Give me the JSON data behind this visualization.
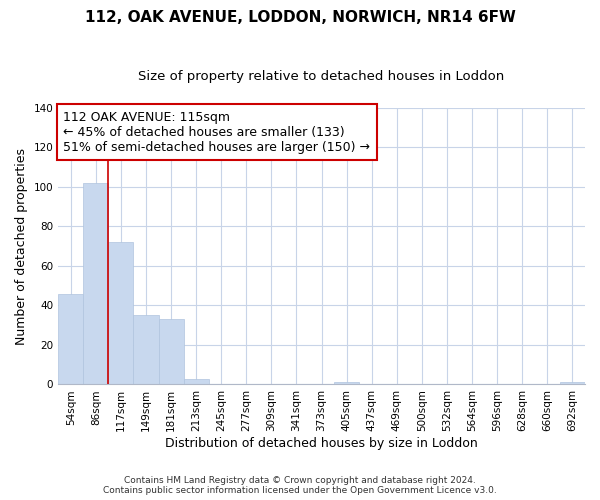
{
  "title1": "112, OAK AVENUE, LODDON, NORWICH, NR14 6FW",
  "title2": "Size of property relative to detached houses in Loddon",
  "xlabel": "Distribution of detached houses by size in Loddon",
  "ylabel": "Number of detached properties",
  "categories": [
    "54sqm",
    "86sqm",
    "117sqm",
    "149sqm",
    "181sqm",
    "213sqm",
    "245sqm",
    "277sqm",
    "309sqm",
    "341sqm",
    "373sqm",
    "405sqm",
    "437sqm",
    "469sqm",
    "500sqm",
    "532sqm",
    "564sqm",
    "596sqm",
    "628sqm",
    "660sqm",
    "692sqm"
  ],
  "values": [
    46,
    102,
    72,
    35,
    33,
    3,
    0,
    0,
    0,
    0,
    0,
    1,
    0,
    0,
    0,
    0,
    0,
    0,
    0,
    0,
    1
  ],
  "bar_color": "#c8d8ee",
  "bar_edge_color": "#b0c4de",
  "highlight_line_color": "#cc0000",
  "highlight_line_index": 1,
  "ylim": [
    0,
    140
  ],
  "yticks": [
    0,
    20,
    40,
    60,
    80,
    100,
    120,
    140
  ],
  "annotation_text": "112 OAK AVENUE: 115sqm\n← 45% of detached houses are smaller (133)\n51% of semi-detached houses are larger (150) →",
  "footer1": "Contains HM Land Registry data © Crown copyright and database right 2024.",
  "footer2": "Contains public sector information licensed under the Open Government Licence v3.0.",
  "bg_color": "#ffffff",
  "grid_color": "#c8d4e8",
  "annotation_box_color": "#ffffff",
  "annotation_box_edge": "#cc0000",
  "title1_fontsize": 11,
  "title2_fontsize": 9.5,
  "axis_label_fontsize": 9,
  "tick_fontsize": 7.5,
  "annotation_fontsize": 9,
  "footer_fontsize": 6.5
}
